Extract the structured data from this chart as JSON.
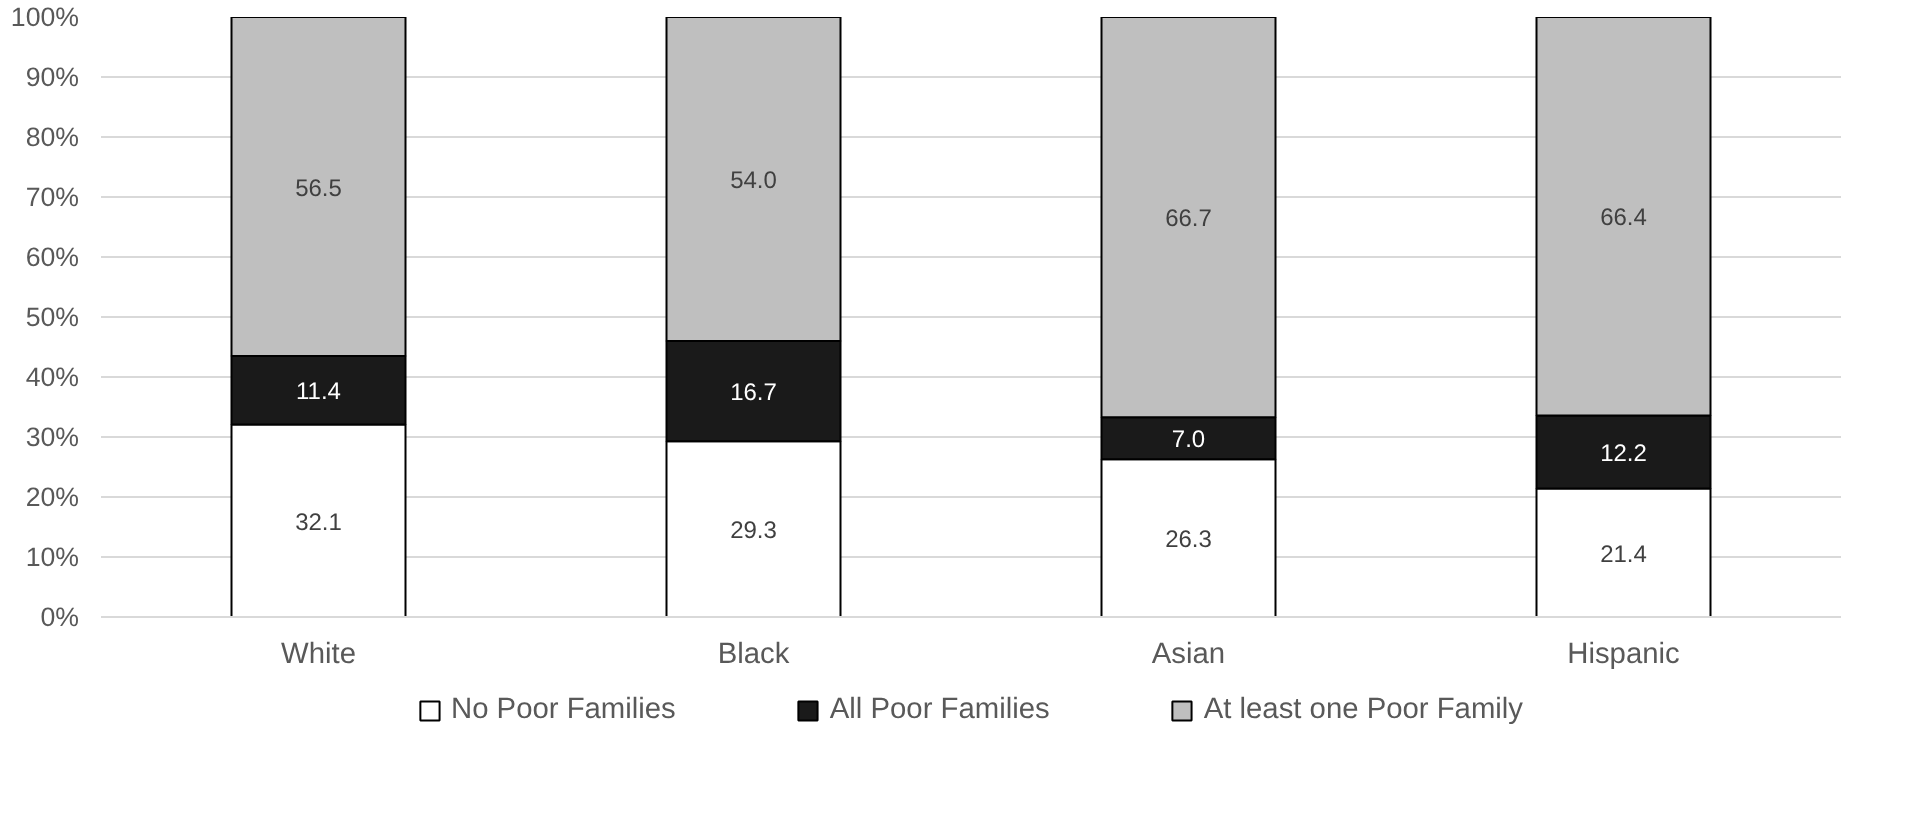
{
  "chart_data": {
    "type": "bar",
    "stacked": true,
    "categories": [
      "White",
      "Black",
      "Asian",
      "Hispanic"
    ],
    "series": [
      {
        "name": "No Poor Families",
        "color": "#ffffff",
        "values": [
          32.1,
          29.3,
          26.3,
          21.4
        ],
        "value_labels": [
          "32.1",
          "29.3",
          "26.3",
          "21.4"
        ]
      },
      {
        "name": "All Poor Families",
        "color": "#1a1a1a",
        "values": [
          11.4,
          16.7,
          7.0,
          12.2
        ],
        "value_labels": [
          "11.4",
          "16.7",
          "7.0",
          "12.2"
        ]
      },
      {
        "name": "At least one Poor Family",
        "color": "#bfbfbf",
        "values": [
          56.5,
          54.0,
          66.7,
          66.4
        ],
        "value_labels": [
          "56.5",
          "54.0",
          "66.7",
          "66.4"
        ]
      }
    ],
    "ylim": [
      0,
      100
    ],
    "yticks": [
      {
        "value": 0,
        "label": "0%"
      },
      {
        "value": 10,
        "label": "10%"
      },
      {
        "value": 20,
        "label": "20%"
      },
      {
        "value": 30,
        "label": "30%"
      },
      {
        "value": 40,
        "label": "40%"
      },
      {
        "value": 50,
        "label": "50%"
      },
      {
        "value": 60,
        "label": "60%"
      },
      {
        "value": 70,
        "label": "70%"
      },
      {
        "value": 80,
        "label": "80%"
      },
      {
        "value": 90,
        "label": "90%"
      },
      {
        "value": 100,
        "label": "100%"
      }
    ],
    "grid": "y",
    "legend": "bottom",
    "data_labels": true
  }
}
